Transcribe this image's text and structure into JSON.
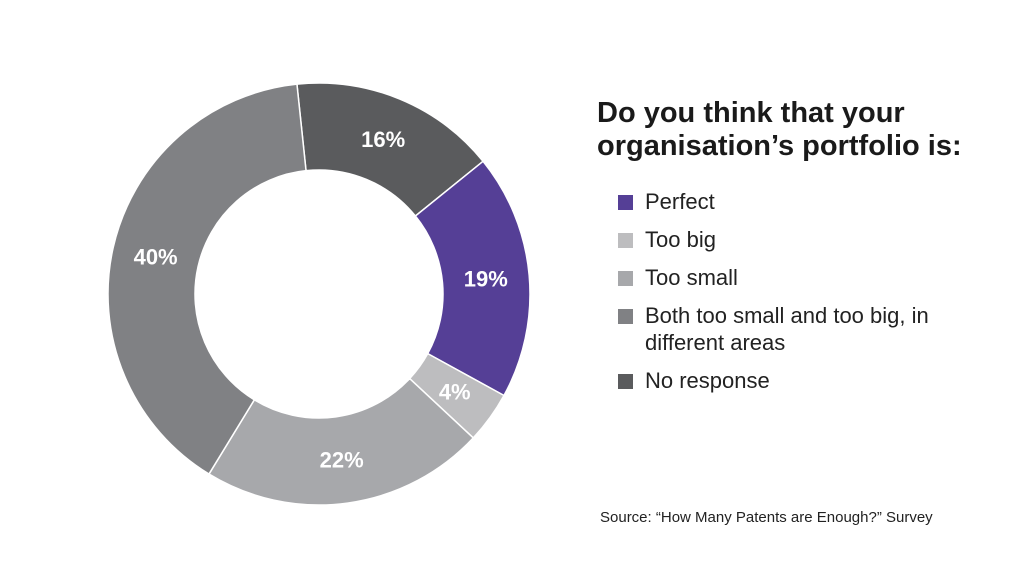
{
  "title": "Do you think that your organisation’s portfolio is:",
  "source": "Source: “How Many Patents are Enough?” Survey",
  "legend": [
    {
      "label": "Perfect",
      "color": "#553F96"
    },
    {
      "label": "Too big",
      "color": "#BDBDBF"
    },
    {
      "label": "Too small",
      "color": "#A7A8AB"
    },
    {
      "label": "Both too small and too big, in different areas",
      "color": "#808184"
    },
    {
      "label": "No response",
      "color": "#5A5B5D"
    }
  ],
  "chart_data": {
    "type": "pie",
    "subtype": "donut",
    "title": "Do you think that your organisation’s portfolio is:",
    "categories": [
      "Perfect",
      "Too big",
      "Too small",
      "Both too small and too big, in different areas",
      "No response"
    ],
    "values": [
      19,
      4,
      22,
      40,
      16
    ],
    "labels": [
      "19%",
      "4%",
      "22%",
      "40%",
      "16%"
    ],
    "colors": [
      "#553F96",
      "#BDBDBF",
      "#A7A8AB",
      "#808184",
      "#5A5B5D"
    ],
    "unit": "%",
    "legend_position": "right",
    "start_angle_deg": -6,
    "direction": "clockwise",
    "slice_order": [
      "No response",
      "Perfect",
      "Too big",
      "Too small",
      "Both too small and too big, in different areas"
    ],
    "annotation": "Source: “How Many Patents are Enough?” Survey"
  }
}
